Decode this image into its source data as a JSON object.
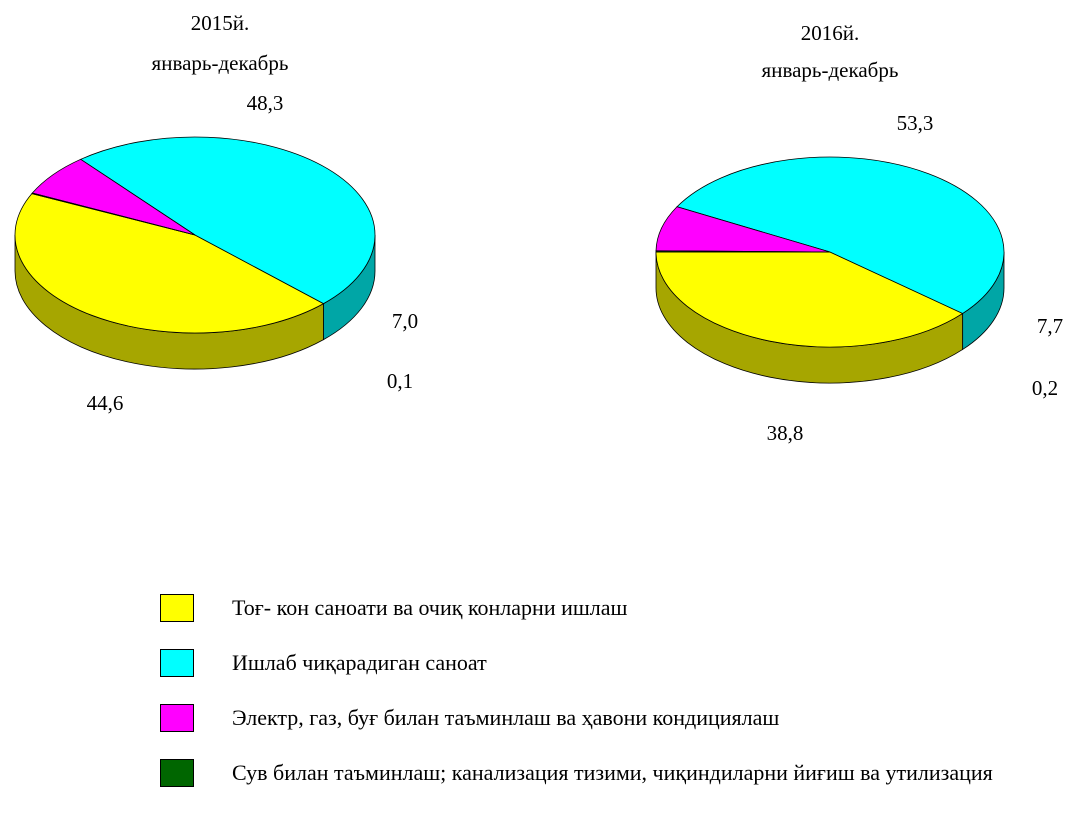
{
  "chart_data": [
    {
      "type": "pie",
      "title": "2015й.",
      "subtitle": "январь-декабрь",
      "values": [
        44.6,
        48.3,
        7.0,
        0.1
      ],
      "value_labels": [
        "44,6",
        "48,3",
        "7,0",
        "0,1"
      ]
    },
    {
      "type": "pie",
      "title": "2016й.",
      "subtitle": "январь-декабрь",
      "values": [
        38.8,
        53.3,
        7.7,
        0.2
      ],
      "value_labels": [
        "38,8",
        "53,3",
        "7,7",
        "0,2"
      ]
    }
  ],
  "legend": {
    "categories": [
      "Тоғ- кон саноати ва очиқ конларни ишлаш",
      "Ишлаб чиқарадиган саноат",
      "Электр, газ, буғ билан таъминлаш ва ҳавони кондициялаш",
      "Сув билан таъминлаш; канализация тизими, чиқиндиларни йиғиш ва утилизация қилиш"
    ],
    "colors": [
      "#ffff00",
      "#00ffff",
      "#ff00ff",
      "#006600"
    ]
  }
}
